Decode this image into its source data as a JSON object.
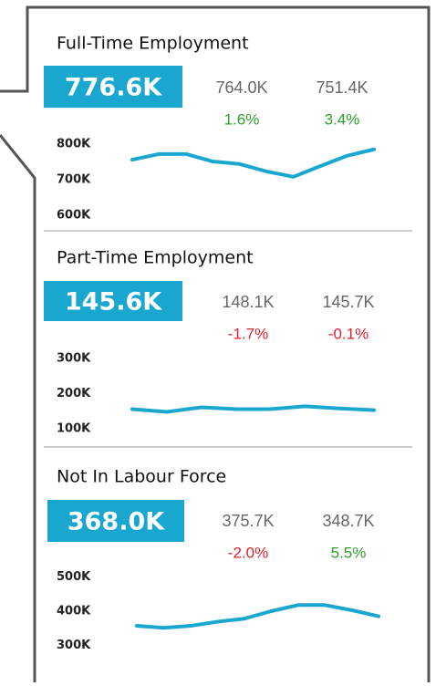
{
  "chart_data": [
    {
      "type": "line",
      "title": "Full-Time Employment",
      "kpi": {
        "value": "776.6K",
        "comparisons": [
          {
            "value": "764.0K",
            "change": "1.6%",
            "change_color": "#2ca02c"
          },
          {
            "value": "751.4K",
            "change": "3.4%",
            "change_color": "#2ca02c"
          }
        ]
      },
      "series": [
        {
          "color": "#1aa7cf",
          "values": [
            756000,
            772000,
            772000,
            751000,
            744000,
            723000,
            708000,
            738000,
            767000,
            785000
          ]
        }
      ],
      "ylim": [
        577000,
        833000
      ],
      "yticks": [
        {
          "value": 800000,
          "label": "800K"
        },
        {
          "value": 700000,
          "label": "700K"
        },
        {
          "value": 600000,
          "label": "600K"
        }
      ]
    },
    {
      "type": "line",
      "title": "Part-Time Employment",
      "kpi": {
        "value": "145.6K",
        "comparisons": [
          {
            "value": "148.1K",
            "change": "-1.7%",
            "change_color": "#e0202a"
          },
          {
            "value": "145.7K",
            "change": "-0.1%",
            "change_color": "#e0202a"
          }
        ]
      },
      "series": [
        {
          "color": "#1aa7cf",
          "values": [
            156000,
            148000,
            161000,
            156000,
            156000,
            164000,
            158000,
            153000
          ]
        }
      ],
      "ylim": [
        74000,
        334000
      ],
      "yticks": [
        {
          "value": 300000,
          "label": "300K"
        },
        {
          "value": 200000,
          "label": "200K"
        },
        {
          "value": 100000,
          "label": "100K"
        }
      ]
    },
    {
      "type": "line",
      "title": "Not In Labour Force",
      "kpi": {
        "value": "368.0K",
        "comparisons": [
          {
            "value": "375.7K",
            "change": "-2.0%",
            "change_color": "#e0202a"
          },
          {
            "value": "348.7K",
            "change": "5.5%",
            "change_color": "#2ca02c"
          }
        ]
      },
      "series": [
        {
          "color": "#1aa7cf",
          "values": [
            357000,
            351000,
            357000,
            369000,
            378000,
            400000,
            418000,
            418000,
            403000,
            385000
          ]
        }
      ],
      "ylim": [
        266000,
        534000
      ],
      "yticks": [
        {
          "value": 500000,
          "label": "500K"
        },
        {
          "value": 400000,
          "label": "400K"
        },
        {
          "value": 300000,
          "label": "300K"
        }
      ]
    }
  ]
}
